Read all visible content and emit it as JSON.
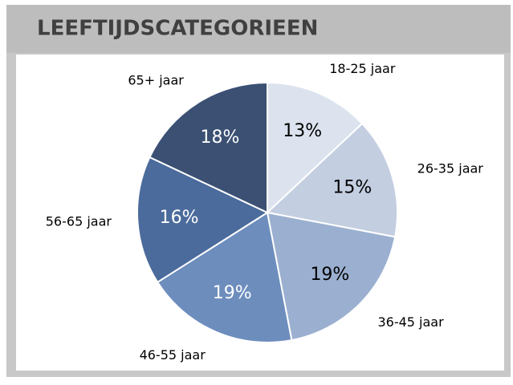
{
  "chart_data": {
    "type": "pie",
    "title": "LEEFTIJDSCATEGORIEEN",
    "categories": [
      "18-25 jaar",
      "26-35 jaar",
      "36-45 jaar",
      "46-55 jaar",
      "56-65 jaar",
      "65+ jaar"
    ],
    "values": [
      13,
      15,
      19,
      19,
      16,
      18
    ],
    "value_labels": [
      "13%",
      "15%",
      "19%",
      "19%",
      "16%",
      "18%"
    ],
    "colors": [
      "#dce3ef",
      "#c3cee1",
      "#9bb0d0",
      "#6d8dbd",
      "#4b6b9c",
      "#3b5073"
    ]
  }
}
